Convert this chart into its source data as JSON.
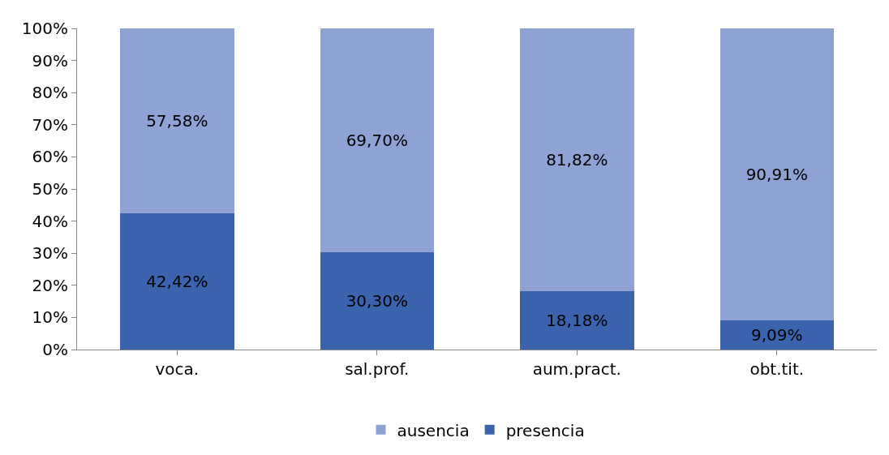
{
  "chart_data": {
    "type": "bar",
    "stacked": true,
    "categories": [
      "voca.",
      "sal.prof.",
      "aum.pract.",
      "obt.tit."
    ],
    "series": [
      {
        "name": "presencia",
        "color": "#3b63ad",
        "values": [
          42.42,
          30.3,
          18.18,
          9.09
        ],
        "value_labels": [
          "42,42%",
          "30,30%",
          "18,18%",
          "9,09%"
        ]
      },
      {
        "name": "ausencia",
        "color": "#8fa2d4",
        "values": [
          57.58,
          69.7,
          81.82,
          90.91
        ],
        "value_labels": [
          "57,58%",
          "69,70%",
          "81,82%",
          "90,91%"
        ]
      }
    ],
    "ylim": [
      0,
      100
    ],
    "yticks": [
      {
        "value": 0,
        "label": "0%"
      },
      {
        "value": 10,
        "label": "10%"
      },
      {
        "value": 20,
        "label": "20%"
      },
      {
        "value": 30,
        "label": "30%"
      },
      {
        "value": 40,
        "label": "40%"
      },
      {
        "value": 50,
        "label": "50%"
      },
      {
        "value": 60,
        "label": "60%"
      },
      {
        "value": 70,
        "label": "70%"
      },
      {
        "value": 80,
        "label": "80%"
      },
      {
        "value": 90,
        "label": "90%"
      },
      {
        "value": 100,
        "label": "100%"
      }
    ],
    "grid": false,
    "legend": "bottom"
  }
}
